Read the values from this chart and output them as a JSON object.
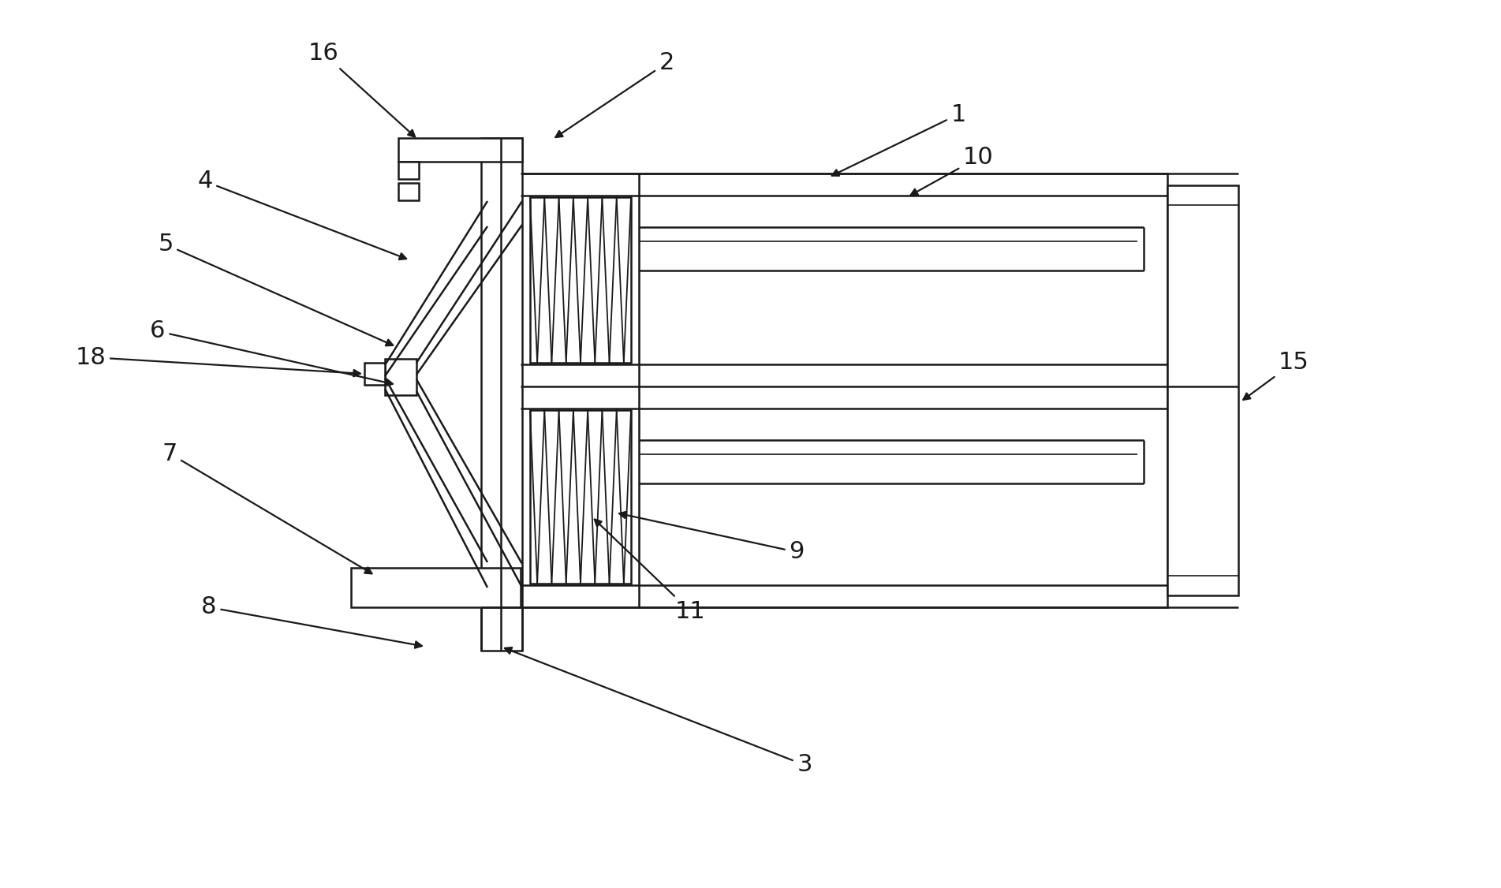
{
  "bg_color": "#ffffff",
  "line_color": "#1a1a1a",
  "lw": 1.8,
  "lw_thin": 1.2,
  "fig_width": 19.03,
  "fig_height": 11.26,
  "font_size": 22
}
